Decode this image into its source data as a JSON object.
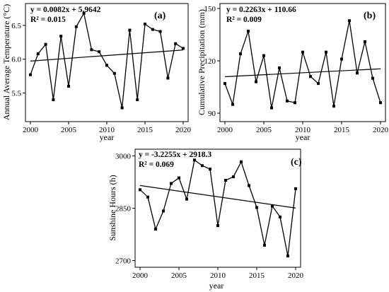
{
  "chart_data": [
    {
      "panel": "(a)",
      "type": "line",
      "ylabel": "Annual Average Temperature (°C)",
      "xlabel": "year",
      "equation": "y = 0.0082x + 5.9642",
      "r2": "R² = 0.015",
      "xlim": [
        2000,
        2020
      ],
      "ylim": [
        5.15,
        6.75
      ],
      "xticks": [
        2000,
        2005,
        2010,
        2015,
        2020
      ],
      "yticks": [
        5.5,
        6.0,
        6.5
      ],
      "ytick_labels": [
        "5.5",
        "6.0",
        "6.5"
      ],
      "x": [
        2000,
        2001,
        2002,
        2003,
        2004,
        2005,
        2006,
        2007,
        2008,
        2009,
        2010,
        2011,
        2012,
        2013,
        2014,
        2015,
        2016,
        2017,
        2018,
        2019,
        2020
      ],
      "y": [
        5.77,
        6.08,
        6.22,
        5.4,
        6.34,
        5.6,
        6.48,
        6.68,
        6.14,
        6.11,
        5.91,
        5.79,
        5.28,
        6.43,
        5.4,
        6.52,
        6.44,
        6.41,
        5.72,
        6.23,
        6.16
      ],
      "trend": {
        "slope": 0.0082,
        "intercept": 5.9642
      }
    },
    {
      "panel": "(b)",
      "type": "line",
      "ylabel": "Cumulative Precipitation (mm)",
      "xlabel": "year",
      "equation": "y = 0.2263x + 110.66",
      "r2": "R² = 0.009",
      "xlim": [
        2000,
        2020
      ],
      "ylim": [
        88,
        150
      ],
      "xticks": [
        2000,
        2005,
        2010,
        2015,
        2020
      ],
      "yticks": [
        90,
        120,
        150
      ],
      "ytick_labels": [
        "90",
        "120",
        "150"
      ],
      "x": [
        2000,
        2001,
        2002,
        2003,
        2004,
        2005,
        2006,
        2007,
        2008,
        2009,
        2010,
        2011,
        2012,
        2013,
        2014,
        2015,
        2016,
        2017,
        2018,
        2019,
        2020
      ],
      "y": [
        107,
        95,
        124,
        137,
        108,
        123,
        93,
        116,
        97,
        96,
        125,
        111,
        107,
        125,
        94,
        121,
        143,
        113,
        131,
        110,
        96
      ],
      "trend": {
        "slope": 0.2263,
        "intercept": 110.66
      }
    },
    {
      "panel": "(c)",
      "type": "line",
      "ylabel": "Sunshine Hours (h)",
      "xlabel": "year",
      "equation": "y = -3.2255x + 2918.3",
      "r2": "R² = 0.069",
      "xlim": [
        2000,
        2020
      ],
      "ylim": [
        2695,
        3005
      ],
      "xticks": [
        2000,
        2005,
        2010,
        2015,
        2020
      ],
      "yticks": [
        2700,
        2850,
        3000
      ],
      "ytick_labels": [
        "2700",
        "2850",
        "3000"
      ],
      "x": [
        2000,
        2001,
        2002,
        2003,
        2004,
        2005,
        2006,
        2007,
        2008,
        2009,
        2010,
        2011,
        2012,
        2013,
        2014,
        2015,
        2016,
        2017,
        2018,
        2019,
        2020
      ],
      "y": [
        2903,
        2882,
        2790,
        2842,
        2921,
        2937,
        2876,
        2988,
        2972,
        2962,
        2800,
        2930,
        2940,
        2983,
        2915,
        2852,
        2744,
        2856,
        2825,
        2713,
        2906
      ],
      "trend": {
        "slope": -3.2255,
        "intercept": 2918.3
      }
    }
  ]
}
